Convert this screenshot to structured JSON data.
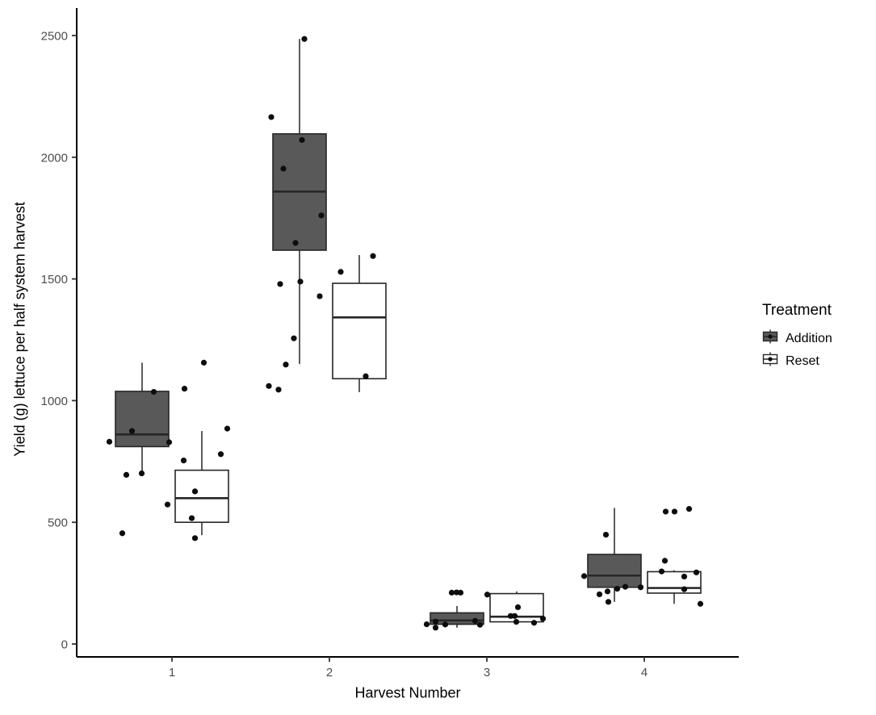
{
  "figure": {
    "x_axis": {
      "title": "Harvest Number",
      "tick_labels": [
        "1",
        "2",
        "3",
        "4"
      ]
    },
    "y_axis": {
      "title": "Yield (g) lettuce per half system harvest",
      "tick_labels": [
        "0",
        "500",
        "1000",
        "1500",
        "2000",
        "2500"
      ]
    },
    "legend": {
      "title": "Treatment",
      "items": [
        {
          "label": "Addition",
          "fill": "#595959"
        },
        {
          "label": "Reset",
          "fill": "#ffffff"
        }
      ]
    },
    "colors": {
      "addition_fill": "#595959",
      "reset_fill": "#ffffff",
      "box_stroke": "#262626",
      "point_color": "#0d0d0d",
      "axis_line": "#000000",
      "tick_text": "#4d4d4d",
      "background": "#ffffff"
    }
  },
  "chart_data": {
    "type": "boxplot-jitter",
    "title": "",
    "xlabel": "Harvest Number",
    "ylabel": "Yield (g) lettuce per half system harvest",
    "categories": [
      "1",
      "2",
      "3",
      "4"
    ],
    "y_ticks": [
      0,
      500,
      1000,
      1500,
      2000,
      2500
    ],
    "ylim": [
      -53,
      2613
    ],
    "grid": false,
    "legend_position": "right",
    "legend_title": "Treatment",
    "series": [
      {
        "name": "Addition",
        "fill": "#595959",
        "boxes": [
          {
            "min": 695,
            "q1": 811,
            "median": 861,
            "q3": 1038,
            "max": 1156
          },
          {
            "min": 1150,
            "q1": 1618,
            "median": 1859,
            "q3": 2096,
            "max": 2486
          },
          {
            "min": 67,
            "q1": 81,
            "median": 97,
            "q3": 128,
            "max": 156
          },
          {
            "min": 173,
            "q1": 233,
            "median": 281,
            "q3": 368,
            "max": 559
          }
        ],
        "points": [
          [
            [
              14.5,
              1036
            ],
            [
              -12.5,
              875
            ],
            [
              -40.5,
              831
            ],
            [
              33.5,
              829
            ],
            [
              -0.5,
              701
            ],
            [
              -19.5,
              695
            ],
            [
              31.5,
              573
            ],
            [
              -24.5,
              455
            ]
          ],
          [
            [
              6,
              2486
            ],
            [
              -35,
              2165
            ],
            [
              3,
              2071
            ],
            [
              -20,
              1953
            ],
            [
              27,
              1761
            ],
            [
              -5,
              1648
            ],
            [
              1,
              1489
            ],
            [
              -24,
              1479
            ],
            [
              25,
              1429
            ],
            [
              -7,
              1256
            ],
            [
              -17,
              1148
            ],
            [
              -38,
              1060
            ],
            [
              -26,
              1045
            ]
          ],
          [
            [
              -6.5,
              211
            ],
            [
              -0.5,
              212
            ],
            [
              4.5,
              211
            ],
            [
              22.5,
              95
            ],
            [
              -26.5,
              92
            ],
            [
              -37.5,
              81
            ],
            [
              -14.5,
              80
            ],
            [
              28.5,
              79
            ],
            [
              -26.5,
              67
            ]
          ],
          [
            [
              -10.5,
              449
            ],
            [
              -37.5,
              279
            ],
            [
              13.5,
              235
            ],
            [
              32.5,
              233
            ],
            [
              3.5,
              227
            ],
            [
              -8.5,
              216
            ],
            [
              -18.5,
              204
            ],
            [
              -7.5,
              173
            ]
          ]
        ]
      },
      {
        "name": "Reset",
        "fill": "#ffffff",
        "boxes": [
          {
            "min": 447,
            "q1": 500,
            "median": 599,
            "q3": 714,
            "max": 875
          },
          {
            "min": 1035,
            "q1": 1090,
            "median": 1342,
            "q3": 1482,
            "max": 1598
          },
          {
            "min": 87,
            "q1": 91,
            "median": 112,
            "q3": 207,
            "max": 216
          },
          {
            "min": 165,
            "q1": 209,
            "median": 230,
            "q3": 297,
            "max": 303
          }
        ],
        "points": [
          [
            [
              2.5,
              1156
            ],
            [
              -21.5,
              1049
            ],
            [
              31.5,
              885
            ],
            [
              23.5,
              780
            ],
            [
              -22.5,
              754
            ],
            [
              -8.5,
              627
            ],
            [
              -12.5,
              517
            ],
            [
              -8.5,
              435
            ]
          ],
          [
            [
              17,
              1594
            ],
            [
              -23,
              1529
            ],
            [
              8,
              1100
            ]
          ],
          [
            [
              -36.5,
              203
            ],
            [
              1.5,
              151
            ],
            [
              -7.5,
              115
            ],
            [
              -2.5,
              115
            ],
            [
              32.5,
              104
            ],
            [
              -0.5,
              91
            ],
            [
              21.5,
              87
            ]
          ],
          [
            [
              18.5,
              555
            ],
            [
              -10.5,
              544
            ],
            [
              0.5,
              544
            ],
            [
              -11.5,
              342
            ],
            [
              -15.5,
              298
            ],
            [
              27.5,
              294
            ],
            [
              12.5,
              277
            ],
            [
              12.5,
              225
            ],
            [
              32.5,
              165
            ]
          ]
        ]
      }
    ]
  }
}
